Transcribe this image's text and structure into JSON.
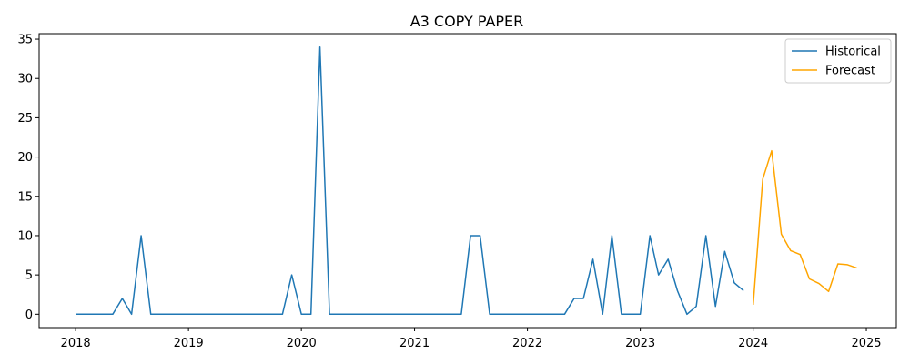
{
  "chart_data": {
    "type": "line",
    "title": "A3  COPY PAPER",
    "xlabel": "",
    "ylabel": "",
    "xlim": [
      "2017-09-05",
      "2025-04-08"
    ],
    "ylim": [
      -1.7,
      35.7
    ],
    "x_ticks": [
      "2018",
      "2019",
      "2020",
      "2021",
      "2022",
      "2023",
      "2024",
      "2025"
    ],
    "y_ticks": [
      0,
      5,
      10,
      15,
      20,
      25,
      30,
      35
    ],
    "grid": false,
    "legend_position": "top-right",
    "series": [
      {
        "name": "Historical",
        "color": "#1f77b4",
        "x": [
          "2018-01",
          "2018-02",
          "2018-03",
          "2018-04",
          "2018-05",
          "2018-06",
          "2018-07",
          "2018-08",
          "2018-09",
          "2018-10",
          "2018-11",
          "2018-12",
          "2019-01",
          "2019-02",
          "2019-03",
          "2019-04",
          "2019-05",
          "2019-06",
          "2019-07",
          "2019-08",
          "2019-09",
          "2019-10",
          "2019-11",
          "2019-12",
          "2020-01",
          "2020-02",
          "2020-03",
          "2020-04",
          "2020-05",
          "2020-06",
          "2020-07",
          "2020-08",
          "2020-09",
          "2020-10",
          "2020-11",
          "2020-12",
          "2021-01",
          "2021-02",
          "2021-03",
          "2021-04",
          "2021-05",
          "2021-06",
          "2021-07",
          "2021-08",
          "2021-09",
          "2021-10",
          "2021-11",
          "2021-12",
          "2022-01",
          "2022-02",
          "2022-03",
          "2022-04",
          "2022-05",
          "2022-06",
          "2022-07",
          "2022-08",
          "2022-09",
          "2022-10",
          "2022-11",
          "2022-12",
          "2023-01",
          "2023-02",
          "2023-03",
          "2023-04",
          "2023-05",
          "2023-06",
          "2023-07",
          "2023-08",
          "2023-09",
          "2023-10",
          "2023-11",
          "2023-12"
        ],
        "values": [
          0,
          0,
          0,
          0,
          0,
          2,
          0,
          10,
          0,
          0,
          0,
          0,
          0,
          0,
          0,
          0,
          0,
          0,
          0,
          0,
          0,
          0,
          0,
          5,
          0,
          0,
          34,
          0,
          0,
          0,
          0,
          0,
          0,
          0,
          0,
          0,
          0,
          0,
          0,
          0,
          0,
          0,
          10,
          10,
          0,
          0,
          0,
          0,
          0,
          0,
          0,
          0,
          0,
          2,
          2,
          7,
          0,
          10,
          0,
          0,
          0,
          10,
          5,
          7,
          3,
          0,
          1,
          10,
          1,
          8,
          4,
          3
        ]
      },
      {
        "name": "Forecast",
        "color": "#ffa500",
        "x": [
          "2024-01",
          "2024-02",
          "2024-03",
          "2024-04",
          "2024-05",
          "2024-06",
          "2024-07",
          "2024-08",
          "2024-09",
          "2024-10",
          "2024-11",
          "2024-12"
        ],
        "values": [
          1.2,
          17.2,
          20.8,
          10.2,
          8.1,
          7.6,
          4.5,
          3.9,
          2.9,
          6.4,
          6.3,
          5.9
        ]
      }
    ]
  }
}
